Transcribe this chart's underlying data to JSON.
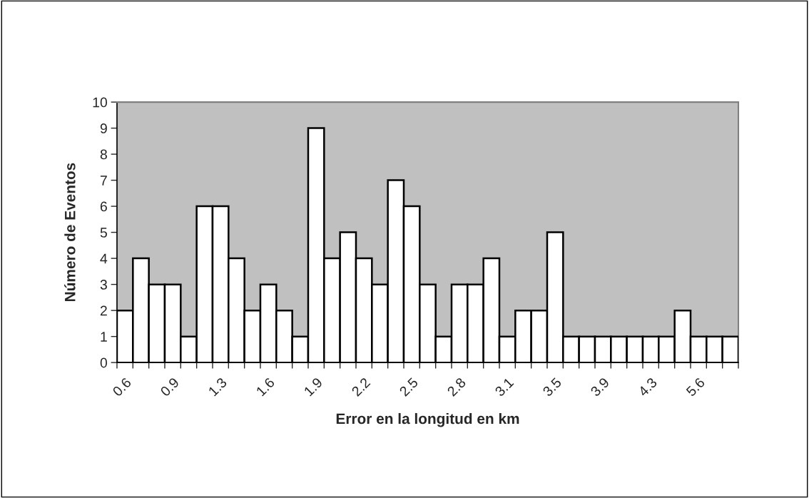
{
  "chart_data": {
    "type": "bar",
    "xlabel": "Error en la longitud en km",
    "ylabel": "Número de Eventos",
    "categories": [
      "0.6",
      null,
      null,
      "0.9",
      null,
      null,
      "1.3",
      null,
      null,
      "1.6",
      null,
      null,
      "1.9",
      null,
      null,
      "2.2",
      null,
      null,
      "2.5",
      null,
      null,
      "2.8",
      null,
      null,
      "3.1",
      null,
      null,
      "3.5",
      null,
      null,
      "3.9",
      null,
      null,
      "4.3",
      null,
      null,
      "5.6",
      null,
      null
    ],
    "values": [
      2,
      4,
      3,
      3,
      1,
      6,
      6,
      4,
      2,
      3,
      2,
      1,
      9,
      4,
      5,
      4,
      3,
      7,
      6,
      3,
      1,
      3,
      3,
      4,
      1,
      2,
      2,
      5,
      1,
      1,
      1,
      1,
      1,
      1,
      1,
      2,
      1,
      1,
      1
    ],
    "color": "#ffffff",
    "ylim": [
      0,
      10
    ],
    "yticks": [
      0,
      1,
      2,
      3,
      4,
      5,
      6,
      7,
      8,
      9,
      10
    ],
    "grid": false,
    "legend": false
  }
}
